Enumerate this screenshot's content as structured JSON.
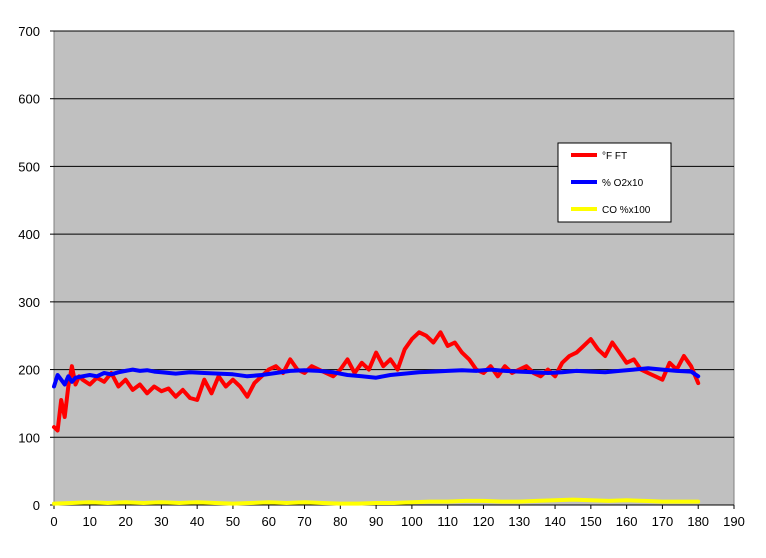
{
  "chart_data": {
    "type": "line",
    "title": "",
    "xlabel": "",
    "ylabel": "",
    "xlim": [
      0,
      190
    ],
    "ylim": [
      0,
      700
    ],
    "x_ticks": [
      0,
      10,
      20,
      30,
      40,
      50,
      60,
      70,
      80,
      90,
      100,
      110,
      120,
      130,
      140,
      150,
      160,
      170,
      180,
      190
    ],
    "y_ticks": [
      0,
      100,
      200,
      300,
      400,
      500,
      600,
      700
    ],
    "grid": "horizontal",
    "plot_background": "#c0c0c0",
    "legend_position": "right",
    "series": [
      {
        "name": "°F FT",
        "color": "#ff0000",
        "x": [
          0,
          1,
          2,
          3,
          4,
          5,
          6,
          7,
          8,
          10,
          12,
          14,
          16,
          18,
          20,
          22,
          24,
          26,
          28,
          30,
          32,
          34,
          36,
          38,
          40,
          42,
          44,
          46,
          48,
          50,
          52,
          54,
          56,
          58,
          60,
          62,
          64,
          66,
          68,
          70,
          72,
          74,
          76,
          78,
          80,
          82,
          84,
          86,
          88,
          90,
          92,
          94,
          96,
          98,
          100,
          102,
          104,
          106,
          108,
          110,
          112,
          114,
          116,
          118,
          120,
          122,
          124,
          126,
          128,
          130,
          132,
          134,
          136,
          138,
          140,
          142,
          144,
          146,
          148,
          150,
          152,
          154,
          156,
          158,
          160,
          162,
          164,
          166,
          168,
          170,
          172,
          174,
          176,
          178,
          180
        ],
        "values": [
          115,
          110,
          155,
          130,
          175,
          205,
          178,
          190,
          185,
          178,
          188,
          182,
          195,
          175,
          185,
          170,
          178,
          165,
          175,
          168,
          172,
          160,
          170,
          158,
          155,
          185,
          165,
          190,
          175,
          185,
          175,
          160,
          180,
          190,
          200,
          205,
          195,
          215,
          200,
          195,
          205,
          200,
          195,
          190,
          200,
          215,
          195,
          210,
          200,
          225,
          205,
          215,
          200,
          230,
          245,
          255,
          250,
          240,
          255,
          235,
          240,
          225,
          215,
          200,
          195,
          205,
          190,
          205,
          195,
          200,
          205,
          195,
          190,
          200,
          190,
          210,
          220,
          225,
          235,
          245,
          230,
          220,
          240,
          225,
          210,
          215,
          200,
          195,
          190,
          185,
          210,
          200,
          220,
          205,
          180
        ]
      },
      {
        "name": "% O2x10",
        "color": "#0000ff",
        "x": [
          0,
          1,
          2,
          3,
          4,
          5,
          6,
          8,
          10,
          12,
          14,
          16,
          18,
          20,
          22,
          24,
          26,
          28,
          30,
          34,
          38,
          42,
          46,
          50,
          54,
          58,
          62,
          66,
          70,
          74,
          78,
          82,
          86,
          90,
          94,
          98,
          102,
          106,
          110,
          114,
          118,
          122,
          126,
          130,
          134,
          138,
          142,
          146,
          150,
          154,
          158,
          162,
          166,
          170,
          174,
          178,
          180
        ],
        "values": [
          175,
          192,
          185,
          178,
          190,
          182,
          188,
          190,
          192,
          190,
          195,
          193,
          196,
          198,
          200,
          198,
          199,
          197,
          196,
          194,
          196,
          195,
          194,
          193,
          190,
          192,
          195,
          198,
          199,
          198,
          196,
          192,
          190,
          188,
          192,
          194,
          196,
          197,
          198,
          199,
          198,
          200,
          198,
          197,
          196,
          195,
          196,
          198,
          197,
          196,
          198,
          200,
          202,
          200,
          198,
          197,
          190
        ]
      },
      {
        "name": "CO %x100",
        "color": "#ffff00",
        "x": [
          0,
          5,
          10,
          15,
          20,
          25,
          30,
          35,
          40,
          45,
          50,
          55,
          60,
          65,
          70,
          75,
          80,
          85,
          90,
          95,
          100,
          105,
          110,
          115,
          120,
          125,
          130,
          135,
          140,
          145,
          150,
          155,
          160,
          165,
          170,
          175,
          180
        ],
        "values": [
          2,
          3,
          4,
          3,
          4,
          3,
          4,
          3,
          4,
          3,
          2,
          3,
          4,
          3,
          4,
          3,
          2,
          2,
          3,
          3,
          4,
          5,
          5,
          6,
          6,
          5,
          5,
          6,
          7,
          8,
          7,
          6,
          7,
          6,
          5,
          5,
          5
        ]
      }
    ]
  }
}
